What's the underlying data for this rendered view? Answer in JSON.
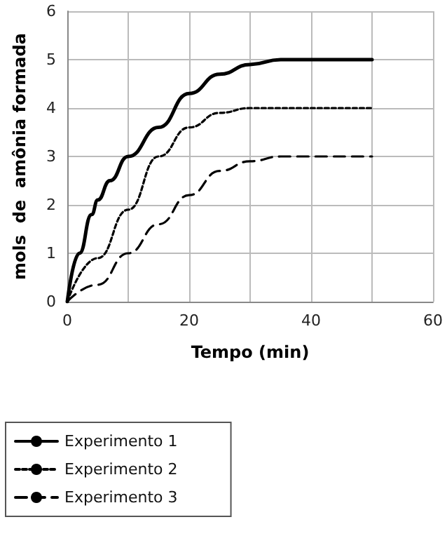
{
  "chart_data": {
    "type": "line",
    "xlabel": "Tempo (min)",
    "ylabel": "mols  de  amônia formada",
    "xlim": [
      0,
      60
    ],
    "xticks": [
      0,
      {
        "value": 10,
        "label": null
      },
      20,
      {
        "value": 30,
        "label": null
      },
      40,
      {
        "value": 50,
        "label": null
      },
      60
    ],
    "ylim": [
      0,
      6
    ],
    "yticks": [
      0,
      1,
      2,
      3,
      4,
      5,
      6
    ],
    "grid": true,
    "legend": "bottom left",
    "marker": "none",
    "series": [
      {
        "name": "Experimento 1",
        "color": "#000000",
        "line_style": "solid",
        "x": [
          0,
          2,
          4,
          5,
          7,
          10,
          15,
          20,
          25,
          30,
          35,
          40,
          50
        ],
        "values": [
          0,
          1,
          1.8,
          2.1,
          2.5,
          3,
          3.6,
          4.3,
          4.7,
          4.9,
          5,
          5,
          5
        ]
      },
      {
        "name": "Experimento 2",
        "color": "#000000",
        "line_style": "dotted",
        "x": [
          0,
          5,
          10,
          15,
          20,
          25,
          30,
          50
        ],
        "values": [
          0,
          0.9,
          1.9,
          3,
          3.6,
          3.9,
          4,
          4
        ]
      },
      {
        "name": "Experimento 3",
        "color": "#000000",
        "line_style": "dashed",
        "x": [
          0,
          5,
          10,
          15,
          20,
          25,
          30,
          35,
          50
        ],
        "values": [
          0,
          0.35,
          1,
          1.6,
          2.2,
          2.7,
          2.9,
          3,
          3
        ]
      }
    ]
  }
}
